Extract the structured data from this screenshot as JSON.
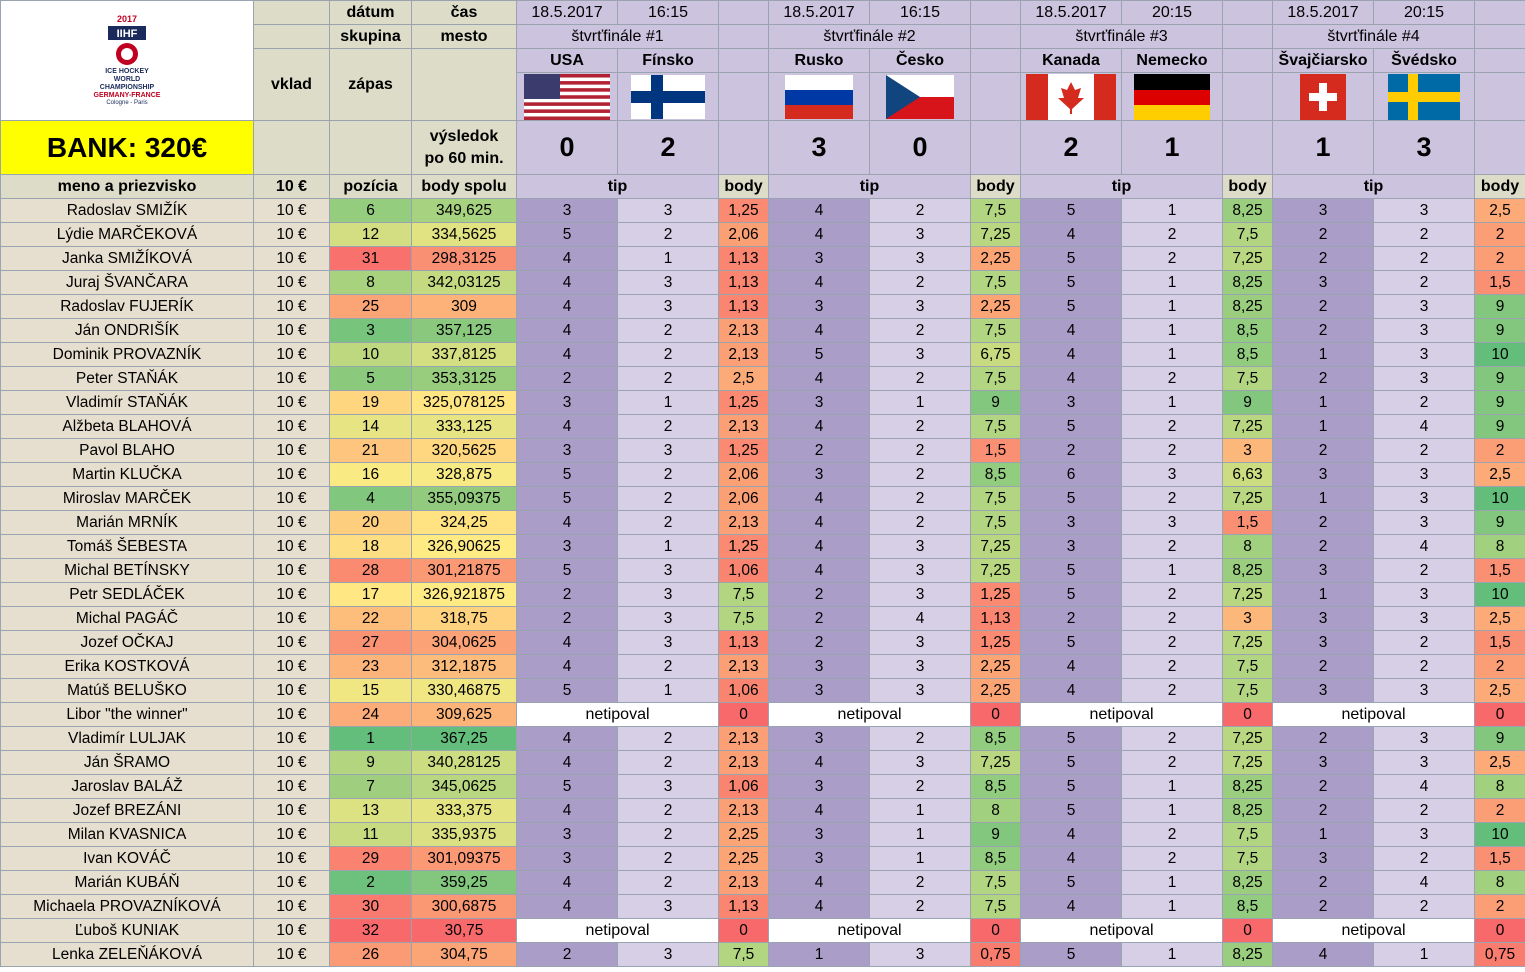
{
  "logo": {
    "year": "2017",
    "brand": "IIHF",
    "line1": "ICE HOCKEY",
    "line2": "WORLD",
    "line3": "CHAMPIONSHIP",
    "line4": "GERMANY-FRANCE",
    "line5": "Cologne - Paris"
  },
  "labels": {
    "datum": "dátum",
    "cas": "čas",
    "skupina": "skupina",
    "mesto": "mesto",
    "vklad": "vklad",
    "zapas": "zápas",
    "vysledok1": "výsledok",
    "vysledok2": "po 60 min.",
    "bank": "BANK: 320€",
    "meno": "meno a priezvisko",
    "vklad_amt": "10 €",
    "pozicia": "pozícia",
    "body_spolu": "body spolu",
    "tip": "tip",
    "body": "body"
  },
  "matches": [
    {
      "date": "18.5.2017",
      "time": "16:15",
      "name": "štvrťfinále #1",
      "home": "USA",
      "away": "Fínsko",
      "home_flag": "us-flag",
      "away_flag": "finland-flag",
      "home_score": "0",
      "away_score": "2"
    },
    {
      "date": "18.5.2017",
      "time": "16:15",
      "name": "štvrťfinále #2",
      "home": "Rusko",
      "away": "Česko",
      "home_flag": "russia-flag",
      "away_flag": "czech-flag",
      "home_score": "3",
      "away_score": "0"
    },
    {
      "date": "18.5.2017",
      "time": "20:15",
      "name": "štvrťfinále #3",
      "home": "Kanada",
      "away": "Nemecko",
      "home_flag": "canada-flag",
      "away_flag": "germany-flag",
      "home_score": "2",
      "away_score": "1"
    },
    {
      "date": "18.5.2017",
      "time": "20:15",
      "name": "štvrťfinále #4",
      "home": "Švajčiarsko",
      "away": "Švédsko",
      "home_flag": "switzerland-flag",
      "away_flag": "sweden-flag",
      "home_score": "1",
      "away_score": "3"
    }
  ],
  "rows": [
    {
      "name": "Radoslav SMIŽÍK",
      "vklad": "10 €",
      "pos": "6",
      "total": "349,625",
      "m": [
        [
          "3",
          "3",
          "1,25"
        ],
        [
          "4",
          "2",
          "7,5"
        ],
        [
          "5",
          "1",
          "8,25"
        ],
        [
          "3",
          "3",
          "2,5"
        ]
      ]
    },
    {
      "name": "Lýdie MARČEKOVÁ",
      "vklad": "10 €",
      "pos": "12",
      "total": "334,5625",
      "m": [
        [
          "5",
          "2",
          "2,06"
        ],
        [
          "4",
          "3",
          "7,25"
        ],
        [
          "4",
          "2",
          "7,5"
        ],
        [
          "2",
          "2",
          "2"
        ]
      ]
    },
    {
      "name": "Janka SMIŽÍKOVÁ",
      "vklad": "10 €",
      "pos": "31",
      "total": "298,3125",
      "m": [
        [
          "4",
          "1",
          "1,13"
        ],
        [
          "3",
          "3",
          "2,25"
        ],
        [
          "5",
          "2",
          "7,25"
        ],
        [
          "2",
          "2",
          "2"
        ]
      ]
    },
    {
      "name": "Juraj ŠVANČARA",
      "vklad": "10 €",
      "pos": "8",
      "total": "342,03125",
      "m": [
        [
          "4",
          "3",
          "1,13"
        ],
        [
          "4",
          "2",
          "7,5"
        ],
        [
          "5",
          "1",
          "8,25"
        ],
        [
          "3",
          "2",
          "1,5"
        ]
      ]
    },
    {
      "name": "Radoslav FUJERÍK",
      "vklad": "10 €",
      "pos": "25",
      "total": "309",
      "m": [
        [
          "4",
          "3",
          "1,13"
        ],
        [
          "3",
          "3",
          "2,25"
        ],
        [
          "5",
          "1",
          "8,25"
        ],
        [
          "2",
          "3",
          "9"
        ]
      ]
    },
    {
      "name": "Ján ONDRIŠÍK",
      "vklad": "10 €",
      "pos": "3",
      "total": "357,125",
      "m": [
        [
          "4",
          "2",
          "2,13"
        ],
        [
          "4",
          "2",
          "7,5"
        ],
        [
          "4",
          "1",
          "8,5"
        ],
        [
          "2",
          "3",
          "9"
        ]
      ]
    },
    {
      "name": "Dominik PROVAZNÍK",
      "vklad": "10 €",
      "pos": "10",
      "total": "337,8125",
      "m": [
        [
          "4",
          "2",
          "2,13"
        ],
        [
          "5",
          "3",
          "6,75"
        ],
        [
          "4",
          "1",
          "8,5"
        ],
        [
          "1",
          "3",
          "10"
        ]
      ]
    },
    {
      "name": "Peter STAŇÁK",
      "vklad": "10 €",
      "pos": "5",
      "total": "353,3125",
      "m": [
        [
          "2",
          "2",
          "2,5"
        ],
        [
          "4",
          "2",
          "7,5"
        ],
        [
          "4",
          "2",
          "7,5"
        ],
        [
          "2",
          "3",
          "9"
        ]
      ]
    },
    {
      "name": "Vladimír STAŇÁK",
      "vklad": "10 €",
      "pos": "19",
      "total": "325,078125",
      "m": [
        [
          "3",
          "1",
          "1,25"
        ],
        [
          "3",
          "1",
          "9"
        ],
        [
          "3",
          "1",
          "9"
        ],
        [
          "1",
          "2",
          "9"
        ]
      ]
    },
    {
      "name": "Alžbeta BLAHOVÁ",
      "vklad": "10 €",
      "pos": "14",
      "total": "333,125",
      "m": [
        [
          "4",
          "2",
          "2,13"
        ],
        [
          "4",
          "2",
          "7,5"
        ],
        [
          "5",
          "2",
          "7,25"
        ],
        [
          "1",
          "4",
          "9"
        ]
      ]
    },
    {
      "name": "Pavol BLAHO",
      "vklad": "10 €",
      "pos": "21",
      "total": "320,5625",
      "m": [
        [
          "3",
          "3",
          "1,25"
        ],
        [
          "2",
          "2",
          "1,5"
        ],
        [
          "2",
          "2",
          "3"
        ],
        [
          "2",
          "2",
          "2"
        ]
      ]
    },
    {
      "name": "Martin KLUČKA",
      "vklad": "10 €",
      "pos": "16",
      "total": "328,875",
      "m": [
        [
          "5",
          "2",
          "2,06"
        ],
        [
          "3",
          "2",
          "8,5"
        ],
        [
          "6",
          "3",
          "6,63"
        ],
        [
          "3",
          "3",
          "2,5"
        ]
      ]
    },
    {
      "name": "Miroslav MARČEK",
      "vklad": "10 €",
      "pos": "4",
      "total": "355,09375",
      "m": [
        [
          "5",
          "2",
          "2,06"
        ],
        [
          "4",
          "2",
          "7,5"
        ],
        [
          "5",
          "2",
          "7,25"
        ],
        [
          "1",
          "3",
          "10"
        ]
      ]
    },
    {
      "name": "Marián MRNÍK",
      "vklad": "10 €",
      "pos": "20",
      "total": "324,25",
      "m": [
        [
          "4",
          "2",
          "2,13"
        ],
        [
          "4",
          "2",
          "7,5"
        ],
        [
          "3",
          "3",
          "1,5"
        ],
        [
          "2",
          "3",
          "9"
        ]
      ]
    },
    {
      "name": "Tomáš ŠEBESTA",
      "vklad": "10 €",
      "pos": "18",
      "total": "326,90625",
      "m": [
        [
          "3",
          "1",
          "1,25"
        ],
        [
          "4",
          "3",
          "7,25"
        ],
        [
          "3",
          "2",
          "8"
        ],
        [
          "2",
          "4",
          "8"
        ]
      ]
    },
    {
      "name": "Michal BETÍNSKY",
      "vklad": "10 €",
      "pos": "28",
      "total": "301,21875",
      "m": [
        [
          "5",
          "3",
          "1,06"
        ],
        [
          "4",
          "3",
          "7,25"
        ],
        [
          "5",
          "1",
          "8,25"
        ],
        [
          "3",
          "2",
          "1,5"
        ]
      ]
    },
    {
      "name": "Petr SEDLÁČEK",
      "vklad": "10 €",
      "pos": "17",
      "total": "326,921875",
      "m": [
        [
          "2",
          "3",
          "7,5"
        ],
        [
          "2",
          "3",
          "1,25"
        ],
        [
          "5",
          "2",
          "7,25"
        ],
        [
          "1",
          "3",
          "10"
        ]
      ]
    },
    {
      "name": "Michal PAGÁČ",
      "vklad": "10 €",
      "pos": "22",
      "total": "318,75",
      "m": [
        [
          "2",
          "3",
          "7,5"
        ],
        [
          "2",
          "4",
          "1,13"
        ],
        [
          "2",
          "2",
          "3"
        ],
        [
          "3",
          "3",
          "2,5"
        ]
      ]
    },
    {
      "name": "Jozef OČKAJ",
      "vklad": "10 €",
      "pos": "27",
      "total": "304,0625",
      "m": [
        [
          "4",
          "3",
          "1,13"
        ],
        [
          "2",
          "3",
          "1,25"
        ],
        [
          "5",
          "2",
          "7,25"
        ],
        [
          "3",
          "2",
          "1,5"
        ]
      ]
    },
    {
      "name": "Erika KOSTKOVÁ",
      "vklad": "10 €",
      "pos": "23",
      "total": "312,1875",
      "m": [
        [
          "4",
          "2",
          "2,13"
        ],
        [
          "3",
          "3",
          "2,25"
        ],
        [
          "4",
          "2",
          "7,5"
        ],
        [
          "2",
          "2",
          "2"
        ]
      ]
    },
    {
      "name": "Matúš BELUŠKO",
      "vklad": "10 €",
      "pos": "15",
      "total": "330,46875",
      "m": [
        [
          "5",
          "1",
          "1,06"
        ],
        [
          "3",
          "3",
          "2,25"
        ],
        [
          "4",
          "2",
          "7,5"
        ],
        [
          "3",
          "3",
          "2,5"
        ]
      ]
    },
    {
      "name": "Libor \"the winner\"",
      "vklad": "10 €",
      "pos": "24",
      "total": "309,625",
      "m": [
        [
          "netipoval",
          "",
          "0"
        ],
        [
          "netipoval",
          "",
          "0"
        ],
        [
          "netipoval",
          "",
          "0"
        ],
        [
          "netipoval",
          "",
          "0"
        ]
      ]
    },
    {
      "name": "Vladimír LULJAK",
      "vklad": "10 €",
      "pos": "1",
      "total": "367,25",
      "m": [
        [
          "4",
          "2",
          "2,13"
        ],
        [
          "3",
          "2",
          "8,5"
        ],
        [
          "5",
          "2",
          "7,25"
        ],
        [
          "2",
          "3",
          "9"
        ]
      ]
    },
    {
      "name": "Ján ŠRAMO",
      "vklad": "10 €",
      "pos": "9",
      "total": "340,28125",
      "m": [
        [
          "4",
          "2",
          "2,13"
        ],
        [
          "4",
          "3",
          "7,25"
        ],
        [
          "5",
          "2",
          "7,25"
        ],
        [
          "3",
          "3",
          "2,5"
        ]
      ]
    },
    {
      "name": "Jaroslav BALÁŽ",
      "vklad": "10 €",
      "pos": "7",
      "total": "345,0625",
      "m": [
        [
          "5",
          "3",
          "1,06"
        ],
        [
          "3",
          "2",
          "8,5"
        ],
        [
          "5",
          "1",
          "8,25"
        ],
        [
          "2",
          "4",
          "8"
        ]
      ]
    },
    {
      "name": "Jozef BREZÁNI",
      "vklad": "10 €",
      "pos": "13",
      "total": "333,375",
      "m": [
        [
          "4",
          "2",
          "2,13"
        ],
        [
          "4",
          "1",
          "8"
        ],
        [
          "5",
          "1",
          "8,25"
        ],
        [
          "2",
          "2",
          "2"
        ]
      ]
    },
    {
      "name": "Milan KVASNICA",
      "vklad": "10 €",
      "pos": "11",
      "total": "335,9375",
      "m": [
        [
          "3",
          "2",
          "2,25"
        ],
        [
          "3",
          "1",
          "9"
        ],
        [
          "4",
          "2",
          "7,5"
        ],
        [
          "1",
          "3",
          "10"
        ]
      ]
    },
    {
      "name": "Ivan KOVÁČ",
      "vklad": "10 €",
      "pos": "29",
      "total": "301,09375",
      "m": [
        [
          "3",
          "2",
          "2,25"
        ],
        [
          "3",
          "1",
          "8,5"
        ],
        [
          "4",
          "2",
          "7,5"
        ],
        [
          "3",
          "2",
          "1,5"
        ]
      ]
    },
    {
      "name": "Marián KUBÁŇ",
      "vklad": "10 €",
      "pos": "2",
      "total": "359,25",
      "m": [
        [
          "4",
          "2",
          "2,13"
        ],
        [
          "4",
          "2",
          "7,5"
        ],
        [
          "5",
          "1",
          "8,25"
        ],
        [
          "2",
          "4",
          "8"
        ]
      ]
    },
    {
      "name": "Michaela PROVAZNÍKOVÁ",
      "vklad": "10 €",
      "pos": "30",
      "total": "300,6875",
      "m": [
        [
          "4",
          "3",
          "1,13"
        ],
        [
          "4",
          "2",
          "7,5"
        ],
        [
          "4",
          "1",
          "8,5"
        ],
        [
          "2",
          "2",
          "2"
        ]
      ]
    },
    {
      "name": "Ľuboš KUNIAK",
      "vklad": "10 €",
      "pos": "32",
      "total": "30,75",
      "m": [
        [
          "netipoval",
          "",
          "0"
        ],
        [
          "netipoval",
          "",
          "0"
        ],
        [
          "netipoval",
          "",
          "0"
        ],
        [
          "netipoval",
          "",
          "0"
        ]
      ]
    },
    {
      "name": "Lenka ZELEŇÁKOVÁ",
      "vklad": "10 €",
      "pos": "26",
      "total": "304,75",
      "m": [
        [
          "2",
          "3",
          "7,5"
        ],
        [
          "1",
          "3",
          "0,75"
        ],
        [
          "5",
          "1",
          "8,25"
        ],
        [
          "4",
          "1",
          "0,75"
        ]
      ]
    }
  ]
}
